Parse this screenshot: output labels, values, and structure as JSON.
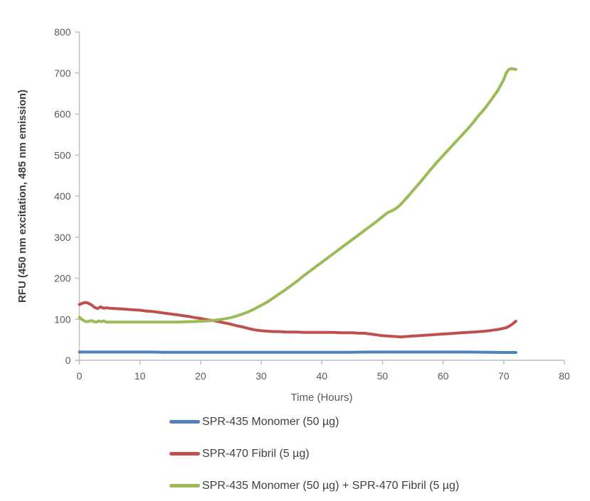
{
  "chart_data": {
    "type": "line",
    "title": "",
    "grid": false,
    "legend_position": "bottom",
    "x_axis": {
      "label": "Time (Hours)",
      "min": 0,
      "max": 80,
      "tick_step": 10,
      "ticks": [
        0,
        10,
        20,
        30,
        40,
        50,
        60,
        70,
        80
      ]
    },
    "y_axis": {
      "label": "RFU (450 nm excitation, 485 nm emission)",
      "min": 0,
      "max": 800,
      "tick_step": 100,
      "ticks": [
        0,
        100,
        200,
        300,
        400,
        500,
        600,
        700,
        800
      ]
    },
    "series": [
      {
        "name": "SPR-435 Monomer (50 µg)",
        "color": "#4F81BD",
        "points": [
          [
            0,
            20
          ],
          [
            2,
            20
          ],
          [
            4,
            20
          ],
          [
            6,
            20
          ],
          [
            8,
            20
          ],
          [
            10,
            20
          ],
          [
            12,
            20
          ],
          [
            14,
            19.5
          ],
          [
            16,
            19.5
          ],
          [
            18,
            19.5
          ],
          [
            20,
            19.5
          ],
          [
            24,
            19.5
          ],
          [
            28,
            19.5
          ],
          [
            32,
            19.5
          ],
          [
            36,
            19.5
          ],
          [
            40,
            19.5
          ],
          [
            44,
            19.5
          ],
          [
            48,
            20
          ],
          [
            52,
            20
          ],
          [
            56,
            20
          ],
          [
            60,
            20
          ],
          [
            64,
            20
          ],
          [
            68,
            19.5
          ],
          [
            70,
            19
          ],
          [
            72,
            19
          ]
        ]
      },
      {
        "name": "SPR-470 Fibril (5 µg)",
        "color": "#C0504D",
        "points": [
          [
            0,
            136
          ],
          [
            0.5,
            139
          ],
          [
            1,
            141
          ],
          [
            1.5,
            139
          ],
          [
            2,
            135
          ],
          [
            2.5,
            129
          ],
          [
            3,
            126
          ],
          [
            3.5,
            130
          ],
          [
            4,
            127
          ],
          [
            4.5,
            128
          ],
          [
            5,
            127
          ],
          [
            6,
            126
          ],
          [
            7,
            125
          ],
          [
            8,
            124
          ],
          [
            9,
            123
          ],
          [
            10,
            122
          ],
          [
            11,
            120
          ],
          [
            12,
            119
          ],
          [
            13,
            117
          ],
          [
            14,
            115
          ],
          [
            15,
            113
          ],
          [
            16,
            111
          ],
          [
            17,
            109
          ],
          [
            18,
            107
          ],
          [
            19,
            104
          ],
          [
            20,
            102
          ],
          [
            21,
            99
          ],
          [
            22,
            97
          ],
          [
            23,
            94
          ],
          [
            24,
            91
          ],
          [
            25,
            88
          ],
          [
            26,
            84
          ],
          [
            27,
            81
          ],
          [
            28,
            77
          ],
          [
            29,
            74
          ],
          [
            30,
            72
          ],
          [
            31,
            71
          ],
          [
            32,
            70
          ],
          [
            33,
            70
          ],
          [
            34,
            69
          ],
          [
            35,
            69
          ],
          [
            36,
            69
          ],
          [
            37,
            68
          ],
          [
            38,
            68
          ],
          [
            39,
            68
          ],
          [
            40,
            68
          ],
          [
            41,
            68
          ],
          [
            42,
            68
          ],
          [
            43,
            67
          ],
          [
            44,
            67
          ],
          [
            45,
            67
          ],
          [
            46,
            66
          ],
          [
            47,
            66
          ],
          [
            48,
            64
          ],
          [
            49,
            62
          ],
          [
            50,
            60
          ],
          [
            51,
            59
          ],
          [
            52,
            58
          ],
          [
            53,
            57
          ],
          [
            54,
            58
          ],
          [
            55,
            59
          ],
          [
            56,
            60
          ],
          [
            57,
            61
          ],
          [
            58,
            62
          ],
          [
            59,
            63
          ],
          [
            60,
            64
          ],
          [
            61,
            65
          ],
          [
            62,
            66
          ],
          [
            63,
            67
          ],
          [
            64,
            68
          ],
          [
            65,
            69
          ],
          [
            66,
            70
          ],
          [
            67,
            71
          ],
          [
            68,
            73
          ],
          [
            69,
            75
          ],
          [
            70,
            78
          ],
          [
            70.5,
            80
          ],
          [
            71,
            84
          ],
          [
            71.5,
            89
          ],
          [
            72,
            95
          ]
        ]
      },
      {
        "name": "SPR-435 Monomer (50 µg) + SPR-470 Fibril (5 µg)",
        "color": "#9BBB59",
        "points": [
          [
            0,
            105
          ],
          [
            0.4,
            100
          ],
          [
            0.8,
            96
          ],
          [
            1.2,
            94
          ],
          [
            1.6,
            95
          ],
          [
            2,
            97
          ],
          [
            2.4,
            94
          ],
          [
            2.8,
            93
          ],
          [
            3.2,
            96
          ],
          [
            3.6,
            94
          ],
          [
            4,
            96
          ],
          [
            4.5,
            93
          ],
          [
            5,
            93
          ],
          [
            6,
            93
          ],
          [
            7,
            93
          ],
          [
            8,
            93
          ],
          [
            9,
            93
          ],
          [
            10,
            93
          ],
          [
            12,
            93
          ],
          [
            14,
            93
          ],
          [
            16,
            93
          ],
          [
            18,
            94
          ],
          [
            20,
            95
          ],
          [
            21,
            96
          ],
          [
            22,
            97
          ],
          [
            23,
            99
          ],
          [
            24,
            101
          ],
          [
            25,
            104
          ],
          [
            26,
            108
          ],
          [
            27,
            113
          ],
          [
            28,
            119
          ],
          [
            29,
            126
          ],
          [
            30,
            134
          ],
          [
            31,
            142
          ],
          [
            32,
            152
          ],
          [
            33,
            162
          ],
          [
            34,
            172
          ],
          [
            35,
            183
          ],
          [
            36,
            194
          ],
          [
            37,
            206
          ],
          [
            38,
            217
          ],
          [
            39,
            228
          ],
          [
            40,
            239
          ],
          [
            41,
            250
          ],
          [
            42,
            261
          ],
          [
            43,
            272
          ],
          [
            44,
            283
          ],
          [
            45,
            294
          ],
          [
            46,
            305
          ],
          [
            47,
            316
          ],
          [
            48,
            327
          ],
          [
            49,
            338
          ],
          [
            50,
            350
          ],
          [
            50.5,
            356
          ],
          [
            51,
            361
          ],
          [
            51.5,
            364
          ],
          [
            52,
            368
          ],
          [
            52.5,
            373
          ],
          [
            53,
            380
          ],
          [
            54,
            396
          ],
          [
            55,
            413
          ],
          [
            56,
            430
          ],
          [
            57,
            448
          ],
          [
            58,
            466
          ],
          [
            59,
            483
          ],
          [
            60,
            499
          ],
          [
            61,
            515
          ],
          [
            62,
            531
          ],
          [
            63,
            547
          ],
          [
            64,
            563
          ],
          [
            65,
            580
          ],
          [
            65.5,
            590
          ],
          [
            66,
            599
          ],
          [
            66.5,
            607
          ],
          [
            67,
            616
          ],
          [
            68,
            636
          ],
          [
            69,
            657
          ],
          [
            70,
            684
          ],
          [
            70.4,
            700
          ],
          [
            70.8,
            708
          ],
          [
            71.2,
            711
          ],
          [
            71.6,
            710
          ],
          [
            72,
            709
          ]
        ]
      }
    ]
  },
  "styles": {
    "axis_color": "#BFBFBF",
    "tick_label_color": "#595959",
    "x_axis_title_color": "#595959",
    "y_axis_title_color": "#3F3F3F",
    "legend_text_color": "#404040",
    "background": "#FFFFFF",
    "line_width": 4
  }
}
